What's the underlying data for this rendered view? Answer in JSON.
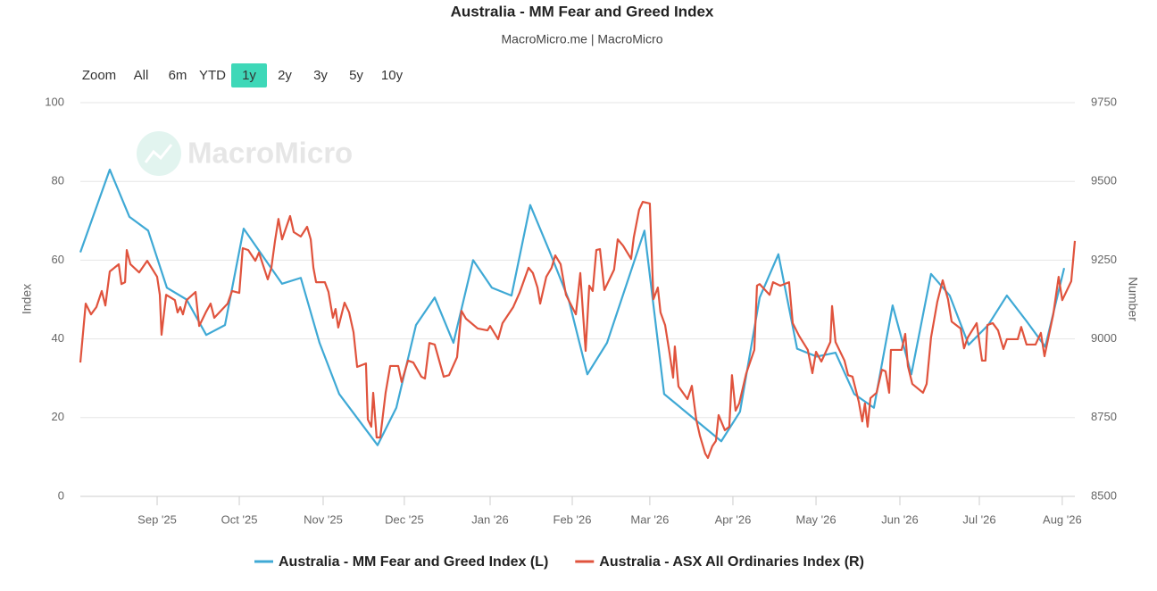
{
  "chart_data": {
    "type": "line",
    "title": "Australia - MM Fear and Greed Index",
    "subtitle": "MacroMicro.me | MacroMicro",
    "watermark": "MacroMicro",
    "range_selector": {
      "label": "Zoom",
      "buttons": [
        "All",
        "6m",
        "YTD",
        "1y",
        "2y",
        "3y",
        "5y",
        "10y"
      ],
      "selected": 3
    },
    "ylabel": "Index",
    "y2label": "Number",
    "grid": true,
    "xlim": [
      0,
      52.06
    ],
    "xticks": [
      {
        "value": 4.02,
        "label": "Sep '25"
      },
      {
        "value": 8.32,
        "label": "Oct '25"
      },
      {
        "value": 12.71,
        "label": "Nov '25"
      },
      {
        "value": 16.96,
        "label": "Dec '25"
      },
      {
        "value": 21.45,
        "label": "Jan '26"
      },
      {
        "value": 25.75,
        "label": "Feb '26"
      },
      {
        "value": 29.81,
        "label": "Mar '26"
      },
      {
        "value": 34.16,
        "label": "Apr '26"
      },
      {
        "value": 38.51,
        "label": "May '26"
      },
      {
        "value": 42.9,
        "label": "Jun '26"
      },
      {
        "value": 47.06,
        "label": "Jul '26"
      },
      {
        "value": 51.4,
        "label": "Aug '26"
      }
    ],
    "ylim": [
      0,
      100
    ],
    "yticks": [
      0,
      20,
      40,
      60,
      80,
      100
    ],
    "y2lim": [
      8500,
      9750
    ],
    "y2ticks": [
      8500,
      8750,
      9000,
      9250,
      9500,
      9750
    ],
    "series": [
      {
        "name": "Australia - MM Fear and Greed Index (L)",
        "color": "#3fa9d5",
        "x": [
          0,
          1.54,
          2.57,
          3.55,
          4.53,
          5.56,
          6.59,
          7.57,
          8.55,
          10.56,
          11.54,
          12.52,
          13.55,
          15.56,
          16.54,
          17.57,
          18.55,
          19.53,
          20.56,
          21.54,
          22.57,
          23.55,
          24.58,
          25.56,
          26.54,
          27.57,
          29.53,
          30.56,
          33.55,
          34.53,
          35.56,
          36.54,
          37.52,
          38.55,
          39.53,
          40.51,
          41.54,
          42.52,
          43.5,
          44.53,
          45.51,
          46.5,
          47.52,
          48.5,
          49.53,
          50.51,
          51.5
        ],
        "values": [
          62,
          83,
          71,
          67.5,
          53,
          50,
          41,
          43.5,
          68,
          54,
          55.5,
          39,
          26,
          13,
          22.5,
          43.5,
          50.5,
          39,
          60,
          53,
          51,
          74,
          62,
          50,
          31,
          39,
          67.5,
          26,
          14,
          21.5,
          50.5,
          61.5,
          37.5,
          35.5,
          36.5,
          26,
          22.5,
          48.5,
          31,
          56.5,
          51,
          38.5,
          43.5,
          51,
          44.5,
          38,
          58
        ]
      },
      {
        "name": "Australia - ASX All Ordinaries Index (R)",
        "color": "#e0533d",
        "axis": "y2",
        "x": [
          0,
          0.28,
          0.56,
          0.84,
          1.12,
          1.31,
          1.54,
          2.01,
          2.15,
          2.34,
          2.43,
          2.62,
          3.08,
          3.5,
          4.02,
          4.16,
          4.25,
          4.49,
          4.95,
          5.09,
          5.23,
          5.37,
          5.56,
          6.03,
          6.22,
          6.59,
          6.82,
          7.01,
          7.71,
          7.94,
          8.32,
          8.5,
          8.79,
          9.16,
          9.35,
          9.81,
          10.0,
          10.19,
          10.37,
          10.56,
          10.98,
          11.17,
          11.54,
          11.87,
          12.06,
          12.2,
          12.34,
          12.8,
          12.99,
          13.22,
          13.36,
          13.5,
          13.83,
          14.07,
          14.3,
          14.49,
          14.95,
          15.05,
          15.23,
          15.33,
          15.51,
          15.7,
          15.98,
          16.22,
          16.64,
          16.82,
          17.15,
          17.43,
          17.85,
          18.04,
          18.27,
          18.55,
          19.02,
          19.3,
          19.72,
          19.95,
          20.19,
          20.8,
          21.31,
          21.45,
          21.87,
          22.1,
          22.66,
          22.99,
          23.46,
          23.69,
          23.93,
          24.07,
          24.39,
          24.67,
          24.86,
          25.14,
          25.42,
          25.94,
          26.17,
          26.31,
          26.45,
          26.64,
          26.82,
          27.01,
          27.2,
          27.43,
          27.94,
          28.13,
          28.41,
          28.83,
          28.97,
          29.25,
          29.44,
          29.81,
          30.0,
          30.23,
          30.37,
          30.61,
          30.84,
          31.03,
          31.12,
          31.31,
          31.78,
          32.01,
          32.24,
          32.43,
          32.71,
          32.85,
          33.08,
          33.27,
          33.41,
          33.74,
          33.97,
          34.11,
          34.3,
          34.49,
          34.86,
          35.28,
          35.42,
          35.56,
          36.08,
          36.26,
          36.64,
          37.1,
          37.29,
          37.62,
          38.08,
          38.32,
          38.51,
          38.79,
          39.26,
          39.35,
          39.53,
          40.0,
          40.19,
          40.42,
          40.75,
          40.93,
          41.07,
          41.21,
          41.36,
          41.68,
          41.96,
          42.15,
          42.34,
          42.43,
          42.99,
          43.18,
          43.32,
          43.55,
          44.11,
          44.3,
          44.53,
          44.86,
          45.14,
          45.42,
          45.61,
          46.08,
          46.26,
          46.45,
          46.92,
          47.2,
          47.38,
          47.48,
          47.76,
          48.04,
          48.32,
          48.5,
          49.07,
          49.25,
          49.53,
          50.0,
          50.28,
          50.47,
          50.93,
          51.21,
          51.4,
          51.87,
          52.06
        ],
        "values": [
          8925,
          9112,
          9078,
          9101,
          9152,
          9106,
          9214,
          9237,
          9174,
          9180,
          9282,
          9237,
          9211,
          9248,
          9197,
          9140,
          9013,
          9140,
          9123,
          9084,
          9101,
          9078,
          9123,
          9149,
          9041,
          9087,
          9112,
          9067,
          9112,
          9152,
          9146,
          9288,
          9282,
          9248,
          9274,
          9189,
          9226,
          9311,
          9381,
          9316,
          9390,
          9339,
          9325,
          9356,
          9316,
          9226,
          9180,
          9180,
          9149,
          9067,
          9095,
          9036,
          9115,
          9084,
          9021,
          8911,
          8922,
          8744,
          8721,
          8829,
          8687,
          8687,
          8829,
          8914,
          8914,
          8863,
          8931,
          8925,
          8880,
          8874,
          8987,
          8982,
          8880,
          8885,
          8942,
          9089,
          9064,
          9033,
          9027,
          9041,
          8999,
          9050,
          9101,
          9146,
          9226,
          9209,
          9163,
          9112,
          9197,
          9226,
          9265,
          9237,
          9140,
          9078,
          9209,
          9084,
          8962,
          9169,
          9152,
          9282,
          9285,
          9155,
          9220,
          9316,
          9296,
          9254,
          9322,
          9410,
          9435,
          9430,
          9126,
          9163,
          9084,
          9044,
          8956,
          8877,
          8976,
          8849,
          8809,
          8851,
          8744,
          8693,
          8636,
          8622,
          8659,
          8676,
          8758,
          8710,
          8721,
          8885,
          8772,
          8795,
          8891,
          8965,
          9169,
          9174,
          9140,
          9180,
          9169,
          9180,
          9050,
          9010,
          8965,
          8891,
          8959,
          8928,
          8990,
          9104,
          8990,
          8931,
          8885,
          8880,
          8800,
          8738,
          8795,
          8721,
          8812,
          8829,
          8902,
          8897,
          8829,
          8965,
          8965,
          9016,
          8914,
          8857,
          8829,
          8857,
          9004,
          9118,
          9186,
          9126,
          9055,
          9033,
          8970,
          9004,
          9050,
          8931,
          8931,
          9044,
          9050,
          9027,
          8968,
          8999,
          8999,
          9038,
          8982,
          8982,
          9019,
          8945,
          9078,
          9197,
          9123,
          9183,
          9311
        ]
      }
    ]
  }
}
